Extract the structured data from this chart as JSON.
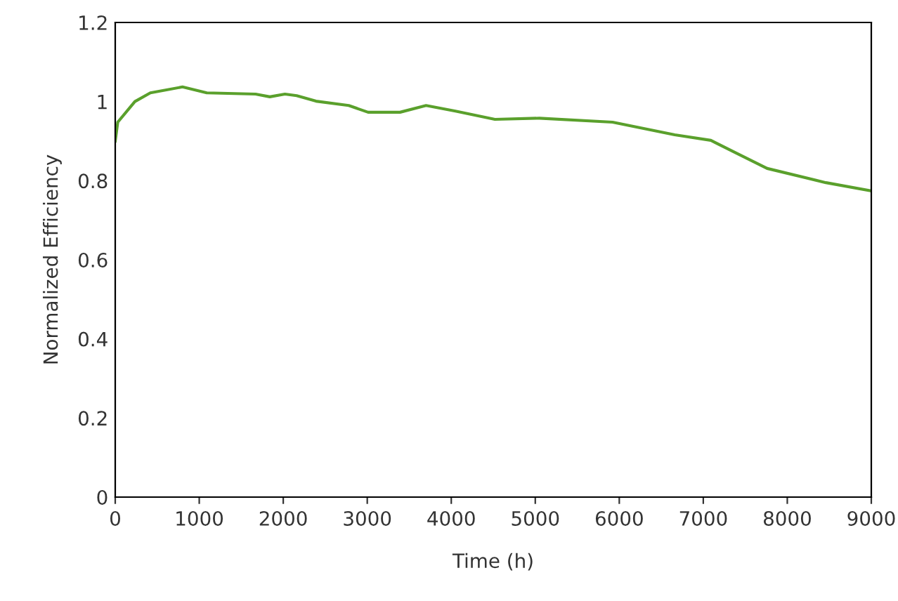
{
  "chart_data": {
    "type": "line",
    "xlabel": "Time (h)",
    "ylabel": "Normalized Efficiency",
    "xlim": [
      0,
      9000
    ],
    "xticks": [
      0,
      1000,
      2000,
      3000,
      4000,
      5000,
      6000,
      7000,
      8000,
      9000
    ],
    "ylim": [
      0,
      1.2
    ],
    "yticks": [
      0,
      0.2,
      0.4,
      0.6,
      0.8,
      1,
      1.2
    ],
    "grid": false,
    "series": [
      {
        "color": "#5aa02c",
        "x": [
          0,
          30,
          234,
          418,
          800,
          1090,
          1670,
          1840,
          2020,
          2160,
          2390,
          2780,
          3010,
          3390,
          3700,
          4050,
          4520,
          5050,
          5920,
          6660,
          7090,
          7390,
          7760,
          8460,
          9000
        ],
        "values": [
          0.9,
          0.948,
          1.0,
          1.022,
          1.037,
          1.022,
          1.019,
          1.012,
          1.019,
          1.015,
          1.001,
          0.99,
          0.973,
          0.973,
          0.99,
          0.976,
          0.955,
          0.958,
          0.948,
          0.916,
          0.902,
          0.87,
          0.831,
          0.795,
          0.774
        ]
      }
    ]
  }
}
